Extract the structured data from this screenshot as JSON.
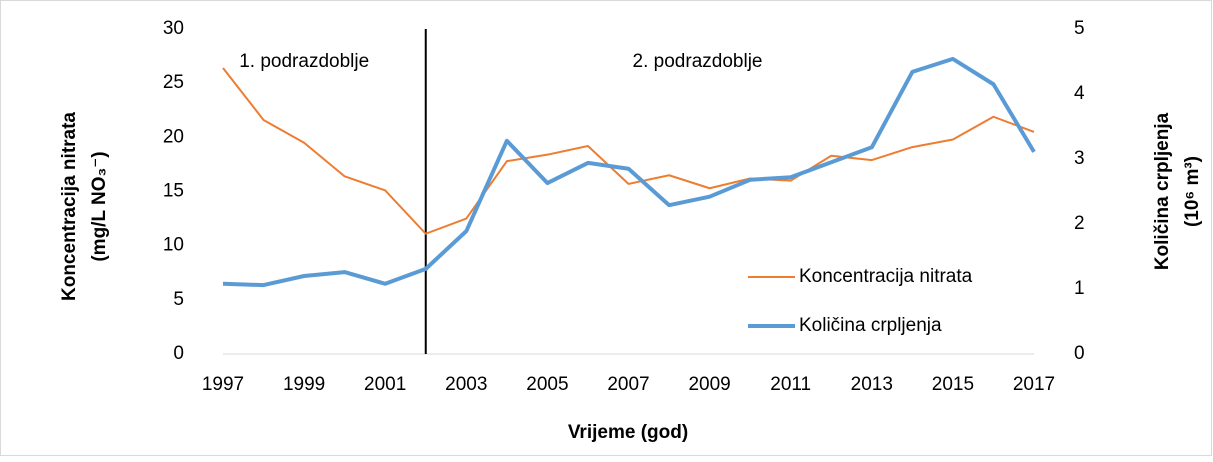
{
  "chart_data": {
    "type": "line",
    "x": [
      1997,
      1998,
      1999,
      2000,
      2001,
      2002,
      2003,
      2004,
      2005,
      2006,
      2007,
      2008,
      2009,
      2010,
      2011,
      2012,
      2013,
      2014,
      2015,
      2016,
      2017
    ],
    "xlim": [
      1997,
      2017
    ],
    "xticks": [
      1997,
      1999,
      2001,
      2003,
      2005,
      2007,
      2009,
      2011,
      2013,
      2015,
      2017
    ],
    "x_label": "Vrijeme (god)",
    "y_label": [
      "Koncentracija nitrata",
      "(mg/L NO₃⁻)"
    ],
    "y2_label": [
      "Količina crpljenja",
      "(10⁶ m³)"
    ],
    "ylim": [
      0,
      30
    ],
    "yticks": [
      0,
      5,
      10,
      15,
      20,
      25,
      30
    ],
    "y2lim": [
      0,
      5
    ],
    "y2ticks": [
      0,
      1,
      2,
      3,
      4,
      5
    ],
    "series": [
      {
        "name": "Koncentracija nitrata",
        "color": "#ed7d31",
        "width": 2,
        "values": [
          26.4,
          21.6,
          19.5,
          16.4,
          15.1,
          11.1,
          12.5,
          17.8,
          18.4,
          19.2,
          15.7,
          16.5,
          15.3,
          16.2,
          16.0,
          18.3,
          17.9,
          19.1,
          19.8,
          21.9,
          20.5
        ]
      },
      {
        "name": "Količina crpljenja",
        "color": "#5b9bd5",
        "width": 4,
        "axis": "y2",
        "values": [
          1.08,
          1.06,
          1.2,
          1.26,
          1.08,
          1.31,
          1.89,
          3.28,
          2.63,
          2.94,
          2.85,
          2.29,
          2.42,
          2.68,
          2.72,
          2.95,
          3.18,
          4.34,
          4.54,
          4.15,
          3.11
        ]
      }
    ],
    "vlines": [
      2002
    ],
    "annotations": [
      {
        "text": "1. podrazdoblje",
        "x": 1997.4
      },
      {
        "text": "2. podrazdoblje",
        "x": 2007.1
      }
    ],
    "legend": "lower right"
  }
}
